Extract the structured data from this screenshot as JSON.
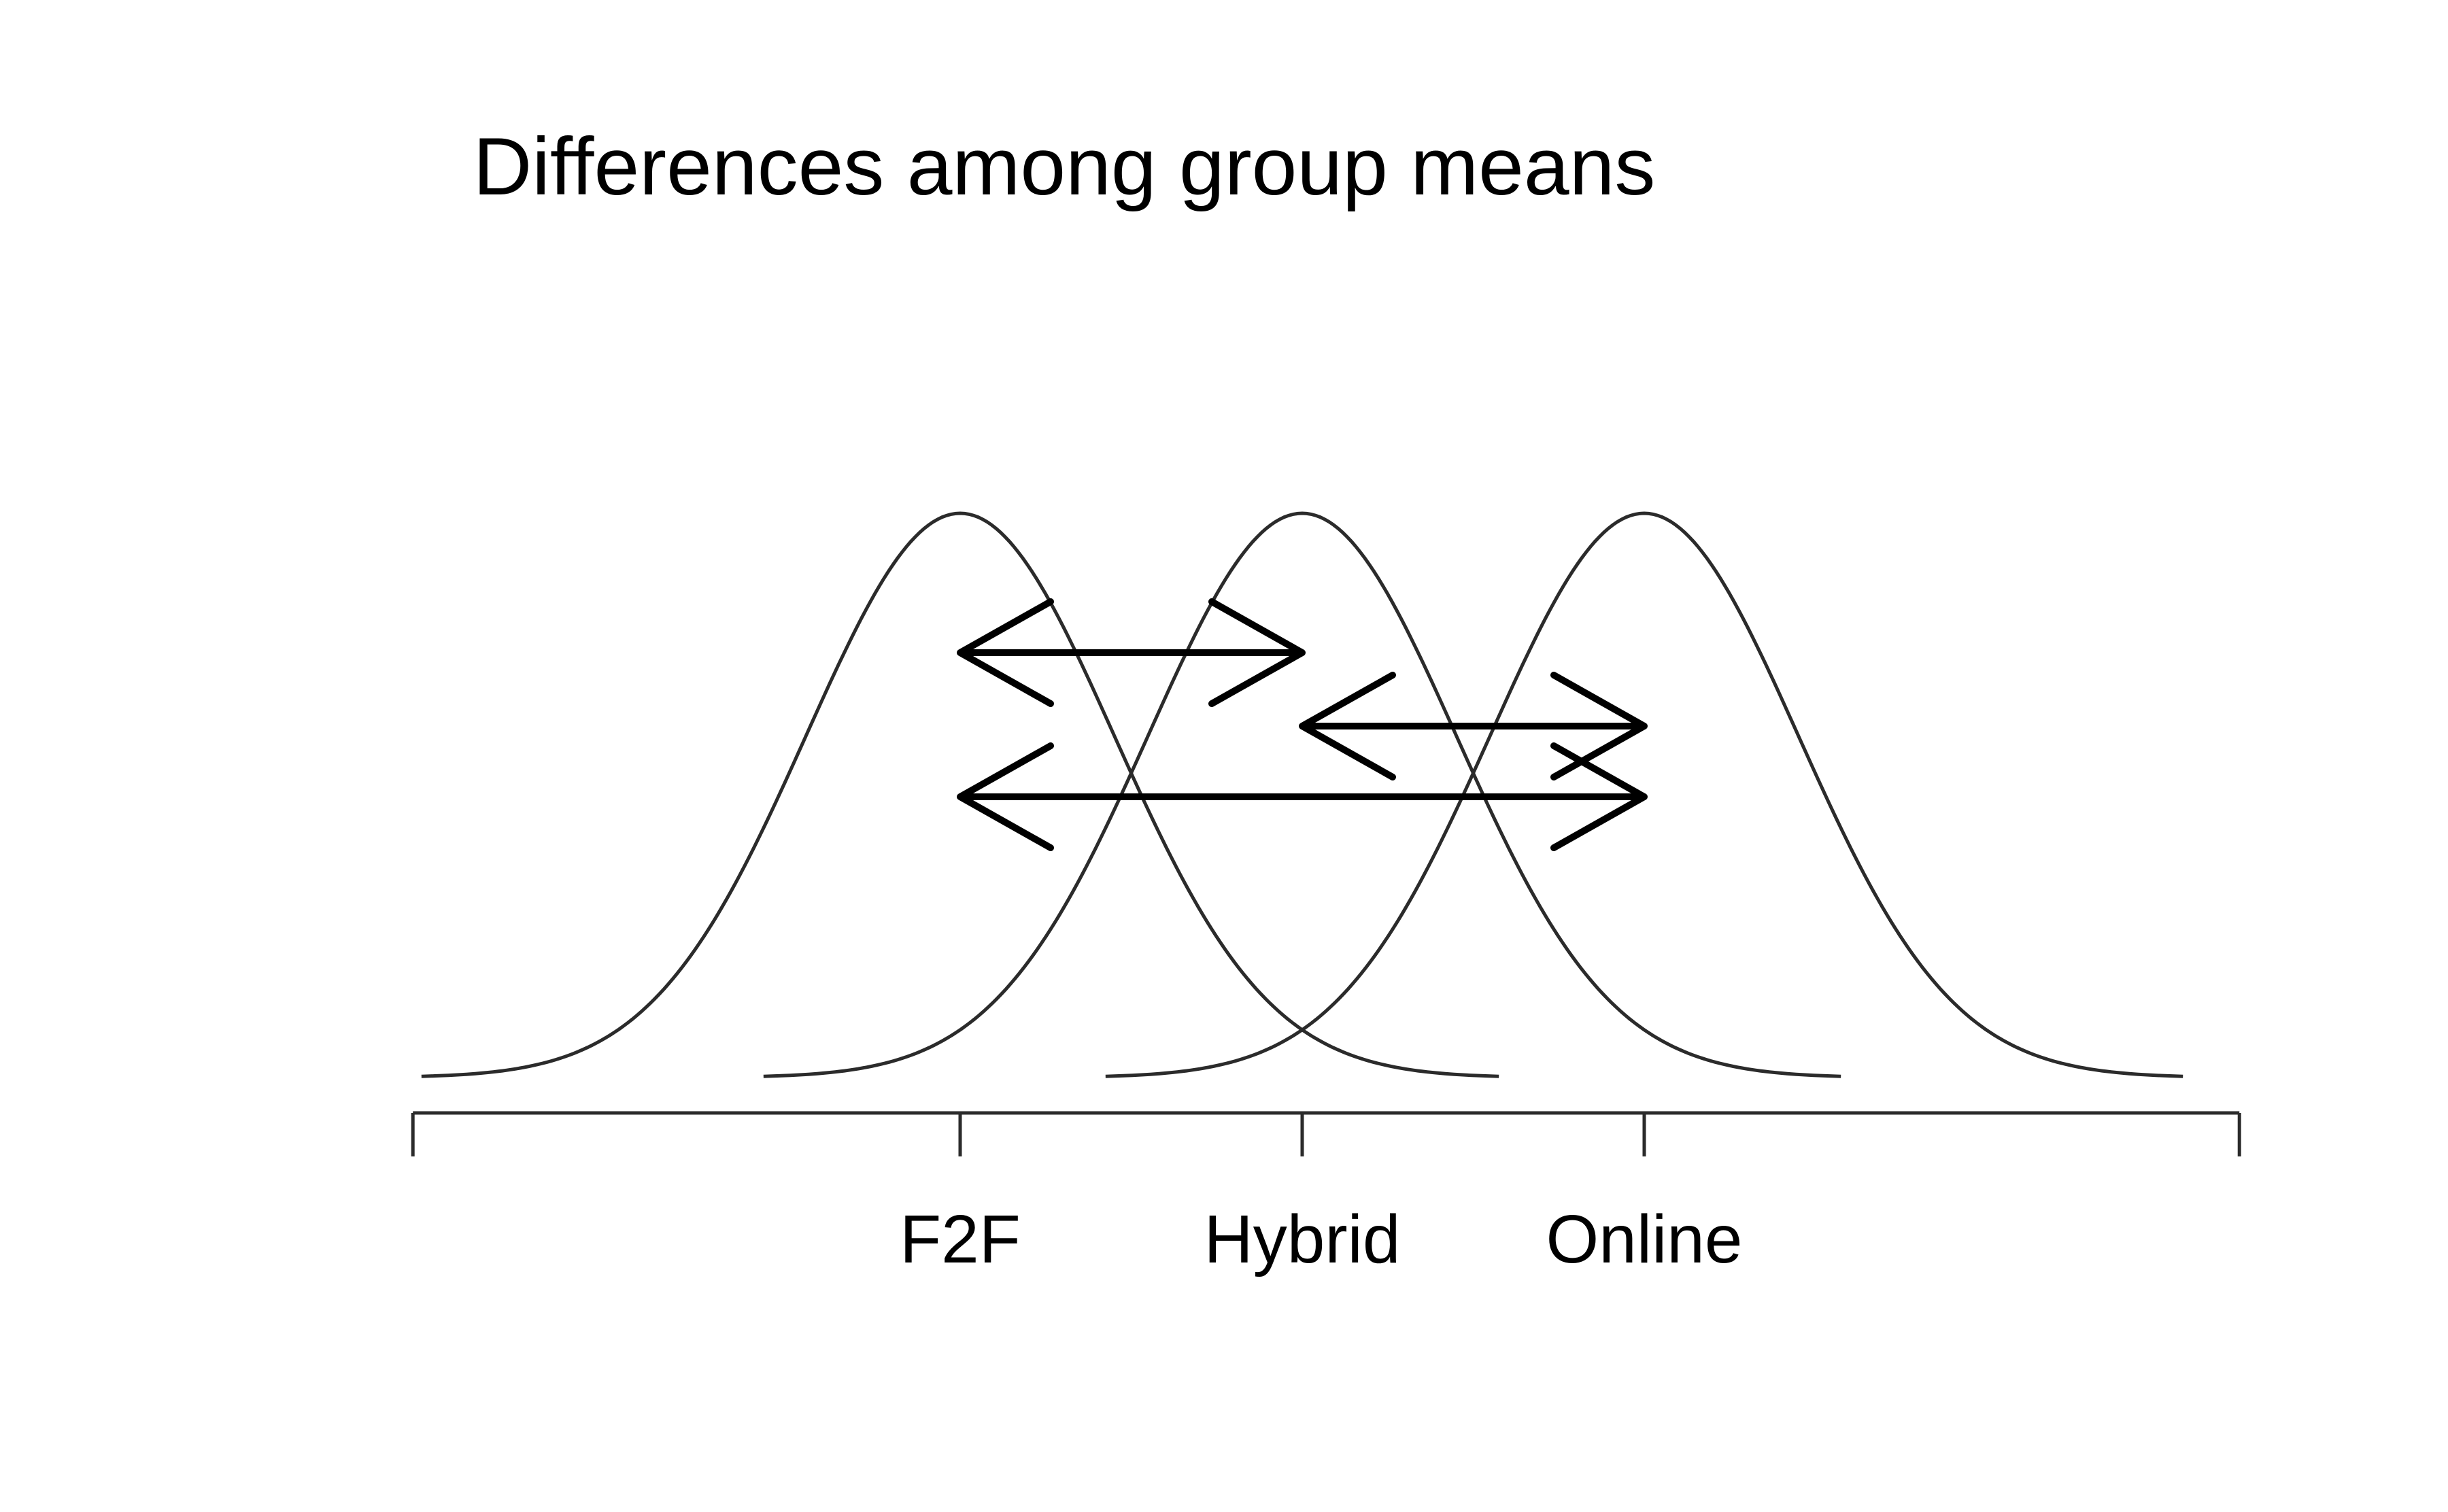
{
  "title": "Differences among group means",
  "groups": [
    {
      "name": "F2F",
      "mean": 0
    },
    {
      "name": "Hybrid",
      "mean": 1
    },
    {
      "name": "Online",
      "mean": 2
    }
  ],
  "distribution": {
    "sd": 0.45,
    "half_width_sd": 3.5
  },
  "axis_range": [
    -1.6,
    3.74
  ],
  "comparisons": [
    {
      "from": "F2F",
      "to": "Hybrid"
    },
    {
      "from": "Hybrid",
      "to": "Online"
    },
    {
      "from": "F2F",
      "to": "Online"
    }
  ]
}
